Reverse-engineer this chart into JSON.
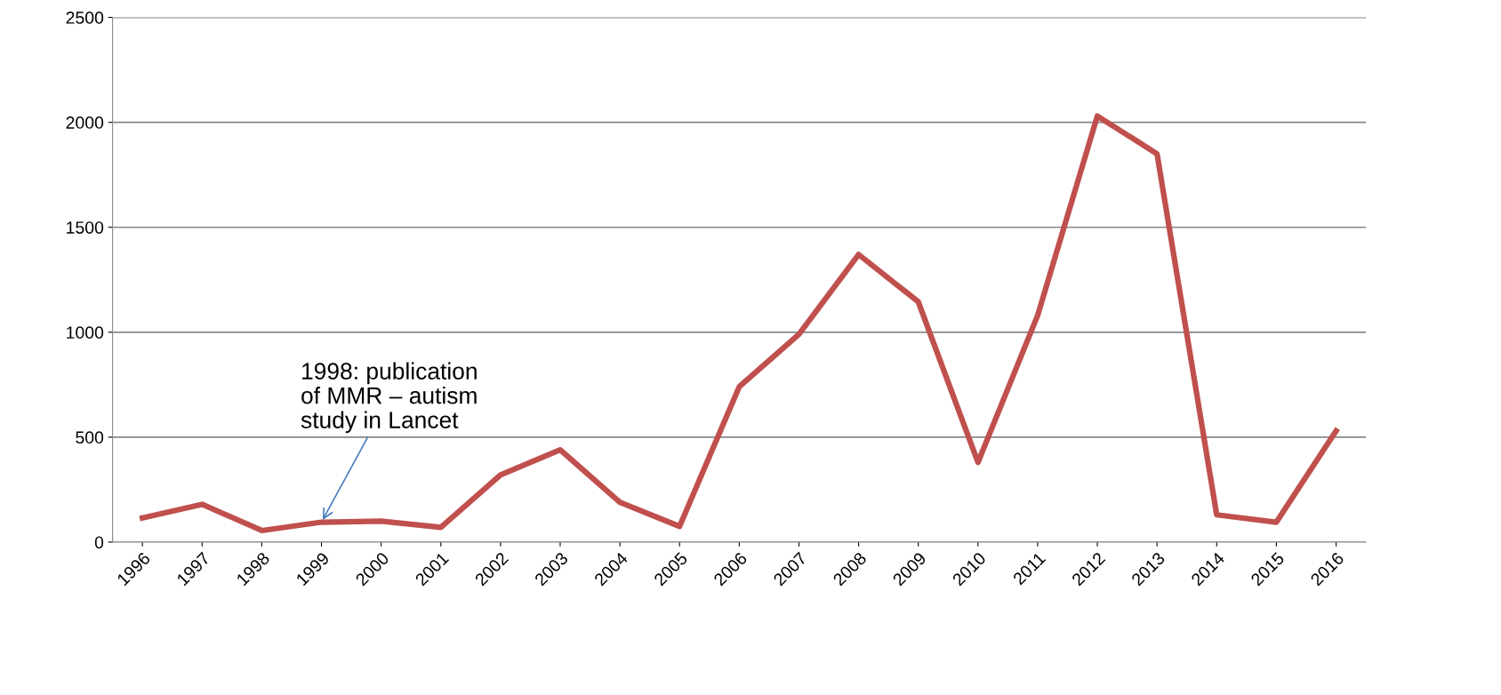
{
  "chart_data": {
    "type": "line",
    "categories": [
      "1996",
      "1997",
      "1998",
      "1999",
      "2000",
      "2001",
      "2002",
      "2003",
      "2004",
      "2005",
      "2006",
      "2007",
      "2008",
      "2009",
      "2010",
      "2011",
      "2012",
      "2013",
      "2014",
      "2015",
      "2016"
    ],
    "series": [
      {
        "color": "#c0504d",
        "values": [
          115,
          180,
          55,
          95,
          100,
          70,
          320,
          440,
          190,
          75,
          740,
          990,
          1370,
          1145,
          380,
          1080,
          2030,
          1850,
          130,
          95,
          530
        ]
      }
    ],
    "ylim": [
      0,
      2500
    ],
    "yticks": [
      0,
      500,
      1000,
      1500,
      2000,
      2500
    ],
    "grid": "y",
    "marker": "none",
    "line_style": "solid",
    "annotations": [
      {
        "text": "1998: publication\nof MMR – autism\nstudy in Lancet",
        "x": "1999",
        "y": 95
      }
    ]
  }
}
